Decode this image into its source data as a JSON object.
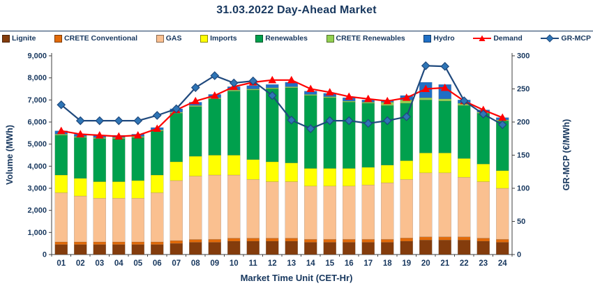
{
  "title": "31.03.2022  Day-Ahead Market",
  "colors": {
    "text": "#17375E",
    "axis_line": "#3f3f3f",
    "background": "#ffffff"
  },
  "chart_data": {
    "type": "bar",
    "stacked": true,
    "grid": false,
    "legend_position": "top",
    "xlabel": "Market Time Unit (CET-Hr)",
    "ylabel_left": "Volume (MWh)",
    "ylabel_right": "GR-MCP (€/MWh)",
    "ylim_left": [
      0,
      9000
    ],
    "ytick_step_left": 1000,
    "ylim_right": [
      0,
      300
    ],
    "ytick_step_right": 50,
    "categories": [
      "01",
      "02",
      "03",
      "04",
      "05",
      "06",
      "07",
      "08",
      "09",
      "10",
      "11",
      "12",
      "13",
      "14",
      "15",
      "16",
      "17",
      "18",
      "19",
      "20",
      "21",
      "22",
      "23",
      "24"
    ],
    "series": [
      {
        "name": "Lignite",
        "color": "#843C0C",
        "values": [
          450,
          450,
          450,
          450,
          450,
          450,
          500,
          550,
          550,
          600,
          600,
          600,
          600,
          550,
          550,
          550,
          550,
          550,
          600,
          650,
          650,
          650,
          600,
          550
        ]
      },
      {
        "name": "CRETE Conventional",
        "color": "#E26B0A",
        "values": [
          120,
          120,
          120,
          120,
          120,
          120,
          130,
          130,
          140,
          140,
          140,
          140,
          140,
          140,
          140,
          140,
          140,
          140,
          150,
          150,
          150,
          150,
          140,
          140
        ]
      },
      {
        "name": "GAS",
        "color": "#FAC090",
        "values": [
          2230,
          2080,
          1980,
          1980,
          1980,
          2230,
          2720,
          2870,
          2910,
          2860,
          2660,
          2560,
          2560,
          2410,
          2410,
          2410,
          2460,
          2560,
          2650,
          2900,
          2900,
          2700,
          2560,
          2310
        ]
      },
      {
        "name": "Imports",
        "color": "#FFFF00",
        "values": [
          800,
          800,
          750,
          750,
          800,
          800,
          850,
          900,
          900,
          900,
          900,
          900,
          850,
          800,
          800,
          800,
          800,
          800,
          850,
          900,
          900,
          850,
          800,
          800
        ]
      },
      {
        "name": "Renewables",
        "color": "#00A04D",
        "values": [
          1800,
          1850,
          1950,
          1950,
          1950,
          2000,
          2200,
          2250,
          2550,
          2900,
          3150,
          3300,
          3400,
          3300,
          3200,
          3000,
          2900,
          2700,
          2600,
          2400,
          2350,
          2400,
          2300,
          2250
        ]
      },
      {
        "name": "CRETE Renewables",
        "color": "#92D050",
        "values": [
          50,
          50,
          50,
          50,
          50,
          50,
          50,
          50,
          50,
          50,
          50,
          50,
          50,
          50,
          50,
          50,
          50,
          150,
          150,
          100,
          100,
          100,
          50,
          50
        ]
      },
      {
        "name": "Hydro",
        "color": "#1F6FC5",
        "values": [
          150,
          100,
          100,
          100,
          100,
          100,
          150,
          150,
          150,
          150,
          150,
          150,
          200,
          150,
          150,
          150,
          100,
          100,
          200,
          700,
          650,
          150,
          100,
          100
        ]
      }
    ],
    "lines": [
      {
        "name": "Demand",
        "color": "#FF0000",
        "marker": "triangle",
        "axis": "left",
        "values": [
          5600,
          5450,
          5400,
          5350,
          5400,
          5700,
          6550,
          6950,
          7200,
          7600,
          7800,
          7900,
          7900,
          7500,
          7350,
          7150,
          7050,
          6950,
          7100,
          7500,
          7550,
          6950,
          6550,
          6200
        ]
      },
      {
        "name": "GR-MCP",
        "color": "#1F497D",
        "marker": "diamond",
        "marker_fill": "#2E75B6",
        "axis": "right",
        "values": [
          226,
          202,
          202,
          202,
          202,
          210,
          220,
          252,
          270,
          259,
          262,
          240,
          203,
          190,
          202,
          202,
          198,
          202,
          208,
          285,
          284,
          232,
          212,
          196
        ]
      }
    ]
  }
}
